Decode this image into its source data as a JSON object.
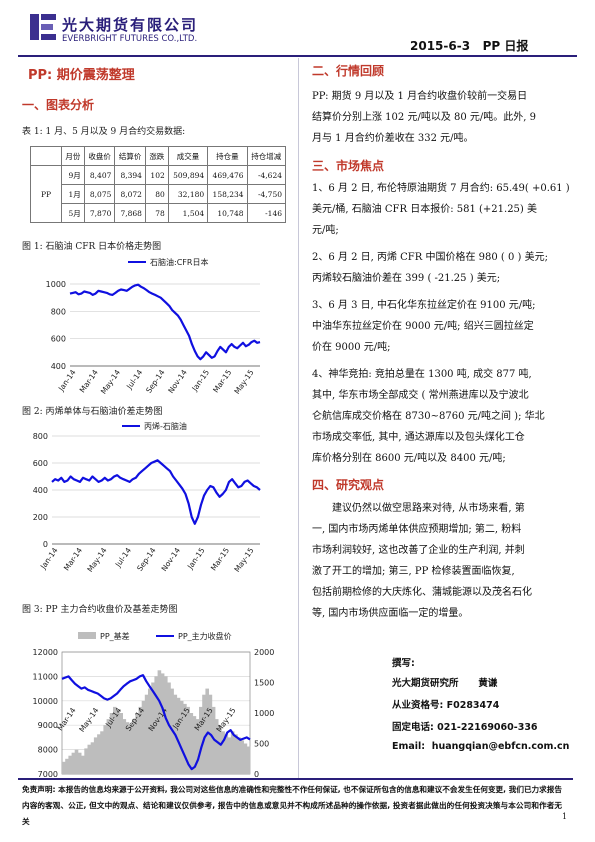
{
  "header": {
    "company_cn": "光大期货有限公司",
    "company_en": "EVERBRIGHT FUTURES CO.,LTD.",
    "date": "2015-6-3",
    "report_name": "PP 日报"
  },
  "title": "PP: 期价震荡整理",
  "section1": {
    "heading": "一、图表分析",
    "table_caption": "表 1: 1 月、5 月以及 9 月合约交易数据:",
    "table": {
      "headers": [
        "月份",
        "收盘价",
        "结算价",
        "涨跌",
        "成交量",
        "持仓量",
        "持仓增减"
      ],
      "product": "PP",
      "rows": [
        [
          "9月",
          "8,407",
          "8,394",
          "102",
          "509,894",
          "469,476",
          "-4,624"
        ],
        [
          "1月",
          "8,075",
          "8,072",
          "80",
          "32,180",
          "158,234",
          "-4,750"
        ],
        [
          "5月",
          "7,870",
          "7,868",
          "78",
          "1,504",
          "10,748",
          "-146"
        ]
      ]
    },
    "fig1_caption": "图 1: 石脑油 CFR 日本价格走势图",
    "fig2_caption": "图 2: 丙烯单体与石脑油价差走势图",
    "fig3_caption": "图 3: PP 主力合约收盘价及基差走势图"
  },
  "chart_data": [
    {
      "type": "line",
      "legend": [
        "石脑油:CFR日本"
      ],
      "color": "#1010e0",
      "ylim": [
        400,
        1000
      ],
      "yticks": [
        "1000",
        "800",
        "600",
        "400"
      ],
      "xticks": [
        "Jan-14",
        "Mar-14",
        "May-14",
        "Jul-14",
        "Sep-14",
        "Nov-14",
        "Jan-15",
        "Mar-15",
        "May-15"
      ],
      "values": [
        930,
        935,
        940,
        925,
        930,
        945,
        940,
        935,
        920,
        930,
        950,
        945,
        940,
        935,
        925,
        920,
        935,
        950,
        960,
        955,
        950,
        965,
        980,
        990,
        995,
        980,
        970,
        955,
        940,
        930,
        920,
        910,
        900,
        880,
        860,
        840,
        810,
        790,
        770,
        740,
        700,
        660,
        620,
        560,
        510,
        470,
        450,
        470,
        500,
        480,
        460,
        470,
        510,
        540,
        520,
        500,
        540,
        560,
        540,
        530,
        550,
        570,
        545,
        555,
        575,
        585,
        570,
        575
      ]
    },
    {
      "type": "line",
      "legend": [
        "丙烯-石脑油"
      ],
      "color": "#1010e0",
      "ylim": [
        0,
        800
      ],
      "yticks": [
        "800",
        "600",
        "400",
        "200",
        "0"
      ],
      "xticks": [
        "Jan-14",
        "Mar-14",
        "May-14",
        "Jul-14",
        "Sep-14",
        "Nov-14",
        "Jan-15",
        "Mar-15",
        "May-15"
      ],
      "values": [
        460,
        480,
        470,
        490,
        460,
        470,
        500,
        480,
        470,
        460,
        490,
        480,
        470,
        500,
        480,
        460,
        470,
        490,
        470,
        480,
        500,
        510,
        490,
        480,
        470,
        460,
        480,
        490,
        520,
        540,
        560,
        580,
        600,
        610,
        620,
        600,
        580,
        560,
        540,
        500,
        470,
        440,
        410,
        370,
        300,
        200,
        150,
        200,
        290,
        360,
        400,
        430,
        420,
        380,
        350,
        370,
        400,
        460,
        480,
        450,
        420,
        430,
        460,
        470,
        450,
        430,
        420,
        400
      ]
    },
    {
      "type": "bar-line",
      "legend": [
        "PP_基差",
        "PP_主力收盘价"
      ],
      "colors": [
        "#bdbdbd",
        "#1010e0"
      ],
      "ylim_left": [
        7000,
        12000
      ],
      "ylim_right": [
        0,
        2000
      ],
      "yticks_left": [
        "12000",
        "11000",
        "10000",
        "9000",
        "8000",
        "7000"
      ],
      "yticks_right": [
        "2000",
        "1500",
        "1000",
        "500",
        "0"
      ],
      "xticks": [
        "Mar-14",
        "May-14",
        "Jul-14",
        "Sep-14",
        "Nov-14",
        "Jan-15",
        "Mar-15",
        "May-15"
      ],
      "price": [
        10900,
        10950,
        11000,
        10850,
        10700,
        10600,
        10500,
        10550,
        10450,
        10400,
        10350,
        10300,
        10200,
        10100,
        10050,
        10100,
        10200,
        10300,
        10450,
        10600,
        10700,
        10800,
        10850,
        10900,
        11000,
        11050,
        10800,
        10600,
        10400,
        10200,
        10000,
        9700,
        9300,
        9000,
        8800,
        8600,
        8300,
        8000,
        7700,
        7400,
        7200,
        7300,
        7600,
        8100,
        8500,
        8700,
        8600,
        8400,
        8300,
        8200,
        8400,
        8700,
        8800,
        8600,
        8500,
        8400,
        8450,
        8500,
        8420
      ],
      "basis": [
        200,
        250,
        300,
        350,
        400,
        350,
        300,
        420,
        480,
        520,
        600,
        650,
        700,
        800,
        900,
        1000,
        1100,
        1050,
        1000,
        900,
        850,
        800,
        900,
        1000,
        1100,
        1200,
        1300,
        1400,
        1500,
        1600,
        1700,
        1650,
        1600,
        1500,
        1400,
        1300,
        1250,
        1200,
        1150,
        1100,
        1000,
        950,
        900,
        1100,
        1300,
        1400,
        1300,
        1100,
        900,
        800,
        700,
        650,
        600,
        700,
        650,
        600,
        550,
        500,
        450
      ]
    }
  ],
  "section2": {
    "heading": "二、行情回顾",
    "lines": [
      "PP: 期货 9 月以及 1 月合约收盘价较前一交易日",
      "结算价分别上涨 102 元/吨以及 80 元/吨。此外, 9",
      "月与 1 月合约价差收在 332 元/吨。"
    ]
  },
  "section3": {
    "heading": "三、市场焦点",
    "items": [
      [
        "1、6 月 2 日, 布伦特原油期货 7 月合约: 65.49( +0.61 )",
        "美元/桶, 石脑油 CFR 日本报价: 581 (+21.25) 美",
        "元/吨;"
      ],
      [
        "2、6 月 2 日, 丙烯 CFR 中国价格在 980 ( 0 ) 美元;",
        "丙烯较石脑油价差在 399 ( -21.25 ) 美元;"
      ],
      [
        "3、6 月 3 日, 中石化华东拉丝定价在 9100 元/吨;",
        "中油华东拉丝定价在 9000 元/吨; 绍兴三圆拉丝定",
        "价在 9000 元/吨;"
      ],
      [
        "4、神华竞拍: 竞拍总量在 1300 吨, 成交 877 吨,",
        "其中, 华东市场全部成交 ( 常州燕进库以及宁波北",
        "仑航信库成交价格在 8730~8760 元/吨之间 ); 华北",
        "市场成交率低, 其中, 通达源库以及包头煤化工仓",
        "库价格分别在 8600 元/吨以及 8400 元/吨;"
      ]
    ]
  },
  "section4": {
    "heading": "四、研究观点",
    "lines": [
      "建议仍然以做空思路来对待, 从市场来看, 第",
      "一, 国内市场丙烯单体供应预期增加; 第二, 粉料",
      "市场利润较好, 这也改善了企业的生产利润, 并刺",
      "激了开工的增加; 第三, PP 检修装置面临恢复,",
      "包括前期检修的大庆炼化、蒲城能源以及茂名石化",
      "等, 国内市场供应面临一定的增量。"
    ]
  },
  "contact": {
    "label_author": "撰写:",
    "author": "光大期货研究所      黄谦",
    "cert": "从业资格号: F0283474",
    "phone": "固定电话: 021-22169060-336",
    "email": "Email:  huangqian@ebfcn.com.cn"
  },
  "footer": {
    "disclaimer": "免责声明: 本报告的信息均来源于公开资料, 我公司对这些信息的准确性和完整性不作任何保证, 也不保证所包含的信息和建议不会发生任何变更, 我们已力求报告内容的客观、公正, 但文中的观点、结论和建议仅供参考, 报告中的信息或意见并不构成所述品种的操作依据, 投资者据此做出的任何投资决策与本公司和作者无关",
    "page": "1"
  }
}
